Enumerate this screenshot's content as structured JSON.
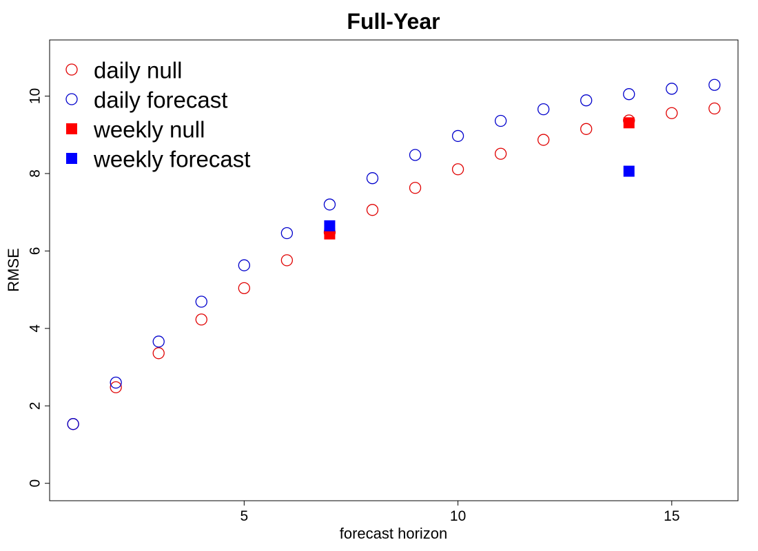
{
  "chart_data": {
    "type": "scatter",
    "title": "Full-Year",
    "xlabel": "forecast horizon",
    "ylabel": "RMSE",
    "xlim": [
      0.45,
      16.55
    ],
    "ylim": [
      -0.45,
      11.45
    ],
    "x_ticks": [
      5,
      10,
      15
    ],
    "x_tick_labels": [
      "5",
      "10",
      "15"
    ],
    "y_ticks": [
      0,
      2,
      4,
      6,
      8,
      10
    ],
    "y_tick_labels": [
      "0",
      "2",
      "4",
      "6",
      "8",
      "10"
    ],
    "grid": false,
    "legend_position": "top-left",
    "series": [
      {
        "name": "daily null",
        "marker": "open-circle",
        "color": "#e00000",
        "x": [
          1,
          2,
          3,
          4,
          5,
          6,
          7,
          8,
          9,
          10,
          11,
          12,
          13,
          14,
          15,
          16
        ],
        "y": [
          1.53,
          2.48,
          3.36,
          4.23,
          5.04,
          5.76,
          6.48,
          7.06,
          7.63,
          8.11,
          8.51,
          8.87,
          9.15,
          9.37,
          9.56,
          9.68
        ]
      },
      {
        "name": "daily forecast",
        "marker": "open-circle",
        "color": "#0000cc",
        "x": [
          1,
          2,
          3,
          4,
          5,
          6,
          7,
          8,
          9,
          10,
          11,
          12,
          13,
          14,
          15,
          16
        ],
        "y": [
          1.53,
          2.6,
          3.66,
          4.69,
          5.63,
          6.46,
          7.2,
          7.88,
          8.48,
          8.97,
          9.36,
          9.66,
          9.89,
          10.05,
          10.19,
          10.29
        ]
      },
      {
        "name": "weekly null",
        "marker": "filled-square",
        "color": "#ff0000",
        "x": [
          7,
          14
        ],
        "y": [
          6.44,
          9.31
        ]
      },
      {
        "name": "weekly forecast",
        "marker": "filled-square",
        "color": "#0000ff",
        "x": [
          7,
          14
        ],
        "y": [
          6.65,
          8.06
        ]
      }
    ]
  }
}
